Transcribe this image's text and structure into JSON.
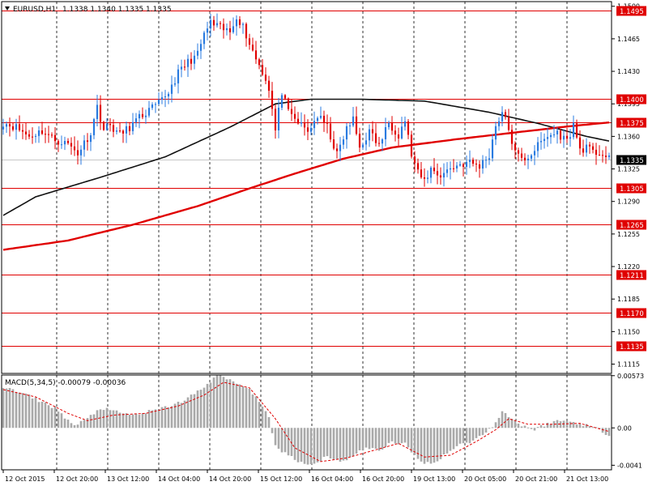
{
  "chart_data": {
    "type": "candlestick",
    "symbol_header": "EURUSD,H1",
    "ohlc_header": "1.1338 1.1340 1.1335 1.1335",
    "ylim": [
      1.1105,
      1.1505
    ],
    "price_ticks": [
      "1.1500",
      "1.1465",
      "1.1430",
      "1.1395",
      "1.1360",
      "1.1325",
      "1.1290",
      "1.1255",
      "1.1220",
      "1.1185",
      "1.1150",
      "1.1115"
    ],
    "levels": [
      {
        "value": 1.1495,
        "label": "1.1495"
      },
      {
        "value": 1.14,
        "label": "1.1400"
      },
      {
        "value": 1.1375,
        "label": "1.1375"
      },
      {
        "value": 1.1305,
        "label": "1.1305"
      },
      {
        "value": 1.1265,
        "label": "1.1265"
      },
      {
        "value": 1.1211,
        "label": "1.1211"
      },
      {
        "value": 1.117,
        "label": "1.1170"
      },
      {
        "value": 1.1135,
        "label": "1.1135"
      }
    ],
    "current_price": {
      "value": 1.1335,
      "label": "1.1335"
    },
    "time_labels": [
      "12 Oct 2015",
      "12 Oct 20:00",
      "13 Oct 12:00",
      "14 Oct 04:00",
      "14 Oct 20:00",
      "15 Oct 12:00",
      "16 Oct 04:00",
      "16 Oct 20:00",
      "19 Oct 13:00",
      "20 Oct 05:00",
      "20 Oct 21:00",
      "21 Oct 13:00"
    ],
    "close_anchors": [
      [
        0,
        1.1375
      ],
      [
        4,
        1.137
      ],
      [
        8,
        1.136
      ],
      [
        12,
        1.1366
      ],
      [
        16,
        1.1356
      ],
      [
        20,
        1.1352
      ],
      [
        23,
        1.1342
      ],
      [
        27,
        1.1364
      ],
      [
        29,
        1.1392
      ],
      [
        31,
        1.1368
      ],
      [
        33,
        1.1372
      ],
      [
        36,
        1.1362
      ],
      [
        39,
        1.137
      ],
      [
        42,
        1.138
      ],
      [
        45,
        1.1388
      ],
      [
        48,
        1.1395
      ],
      [
        51,
        1.1408
      ],
      [
        54,
        1.1428
      ],
      [
        57,
        1.144
      ],
      [
        60,
        1.1448
      ],
      [
        62,
        1.147
      ],
      [
        64,
        1.1482
      ],
      [
        66,
        1.1478
      ],
      [
        68,
        1.1475
      ],
      [
        70,
        1.1472
      ],
      [
        72,
        1.149
      ],
      [
        74,
        1.1478
      ],
      [
        76,
        1.146
      ],
      [
        78,
        1.1444
      ],
      [
        80,
        1.143
      ],
      [
        82,
        1.1412
      ],
      [
        84,
        1.1366
      ],
      [
        86,
        1.1408
      ],
      [
        88,
        1.1385
      ],
      [
        91,
        1.1375
      ],
      [
        94,
        1.1365
      ],
      [
        97,
        1.1382
      ],
      [
        100,
        1.137
      ],
      [
        103,
        1.134
      ],
      [
        106,
        1.1368
      ],
      [
        108,
        1.1378
      ],
      [
        110,
        1.1348
      ],
      [
        113,
        1.1365
      ],
      [
        116,
        1.135
      ],
      [
        119,
        1.1375
      ],
      [
        122,
        1.1362
      ],
      [
        124,
        1.1378
      ],
      [
        126,
        1.134
      ],
      [
        128,
        1.132
      ],
      [
        130,
        1.1312
      ],
      [
        132,
        1.1325
      ],
      [
        135,
        1.1318
      ],
      [
        138,
        1.1326
      ],
      [
        141,
        1.133
      ],
      [
        144,
        1.1332
      ],
      [
        147,
        1.1328
      ],
      [
        150,
        1.134
      ],
      [
        152,
        1.1372
      ],
      [
        154,
        1.1386
      ],
      [
        156,
        1.1368
      ],
      [
        158,
        1.1342
      ],
      [
        160,
        1.1335
      ],
      [
        162,
        1.1338
      ],
      [
        165,
        1.135
      ],
      [
        168,
        1.136
      ],
      [
        171,
        1.1364
      ],
      [
        174,
        1.1355
      ],
      [
        176,
        1.1372
      ],
      [
        178,
        1.1346
      ],
      [
        180,
        1.1348
      ],
      [
        182,
        1.1342
      ],
      [
        184,
        1.1343
      ],
      [
        186,
        1.1338
      ],
      [
        187,
        1.1335
      ]
    ],
    "ma_black_anchors": [
      [
        0,
        1.1275
      ],
      [
        10,
        1.1295
      ],
      [
        30,
        1.1316
      ],
      [
        50,
        1.1338
      ],
      [
        70,
        1.137
      ],
      [
        84,
        1.1395
      ],
      [
        95,
        1.14
      ],
      [
        110,
        1.14
      ],
      [
        130,
        1.1398
      ],
      [
        150,
        1.1386
      ],
      [
        165,
        1.1374
      ],
      [
        180,
        1.136
      ],
      [
        187,
        1.1355
      ]
    ],
    "ma_red_anchors": [
      [
        0,
        1.1238
      ],
      [
        20,
        1.1248
      ],
      [
        40,
        1.1265
      ],
      [
        60,
        1.1285
      ],
      [
        76,
        1.1304
      ],
      [
        90,
        1.132
      ],
      [
        105,
        1.1336
      ],
      [
        120,
        1.1348
      ],
      [
        140,
        1.1357
      ],
      [
        160,
        1.1365
      ],
      [
        175,
        1.1371
      ],
      [
        187,
        1.1375
      ]
    ],
    "macd": {
      "header": "MACD(5,34,5) -0.00079 -0.00036",
      "ylim": [
        -0.0046,
        0.0058
      ],
      "ticks": [
        {
          "value": 0.00573,
          "label": "0.00573"
        },
        {
          "value": 0.0,
          "label": "0.00"
        },
        {
          "value": -0.0041,
          "label": "-0.0041"
        }
      ],
      "hist_anchors": [
        [
          0,
          0.0045
        ],
        [
          8,
          0.0035
        ],
        [
          16,
          0.0022
        ],
        [
          22,
          0.0002
        ],
        [
          26,
          0.001
        ],
        [
          30,
          0.0022
        ],
        [
          34,
          0.0018
        ],
        [
          40,
          0.0014
        ],
        [
          48,
          0.002
        ],
        [
          56,
          0.003
        ],
        [
          62,
          0.0045
        ],
        [
          66,
          0.0058
        ],
        [
          70,
          0.0052
        ],
        [
          74,
          0.0046
        ],
        [
          78,
          0.0036
        ],
        [
          82,
          0.001
        ],
        [
          84,
          -0.002
        ],
        [
          88,
          -0.003
        ],
        [
          92,
          -0.0038
        ],
        [
          96,
          -0.004
        ],
        [
          100,
          -0.003
        ],
        [
          104,
          -0.0038
        ],
        [
          108,
          -0.003
        ],
        [
          112,
          -0.0022
        ],
        [
          116,
          -0.0025
        ],
        [
          120,
          -0.0015
        ],
        [
          124,
          -0.0018
        ],
        [
          128,
          -0.0035
        ],
        [
          132,
          -0.004
        ],
        [
          136,
          -0.003
        ],
        [
          140,
          -0.002
        ],
        [
          144,
          -0.0015
        ],
        [
          148,
          -0.0008
        ],
        [
          151,
          0.0002
        ],
        [
          154,
          0.0018
        ],
        [
          157,
          0.001
        ],
        [
          160,
          0.0003
        ],
        [
          164,
          -0.0002
        ],
        [
          168,
          0.0005
        ],
        [
          172,
          0.0008
        ],
        [
          176,
          0.0006
        ],
        [
          180,
          0.0003
        ],
        [
          184,
          -0.0002
        ],
        [
          187,
          -0.0008
        ]
      ],
      "signal_anchors": [
        [
          0,
          0.0042
        ],
        [
          10,
          0.0034
        ],
        [
          20,
          0.0016
        ],
        [
          26,
          0.0008
        ],
        [
          34,
          0.0014
        ],
        [
          44,
          0.0016
        ],
        [
          54,
          0.0024
        ],
        [
          62,
          0.0036
        ],
        [
          68,
          0.005
        ],
        [
          76,
          0.0044
        ],
        [
          84,
          0.001
        ],
        [
          90,
          -0.0022
        ],
        [
          98,
          -0.0037
        ],
        [
          106,
          -0.0033
        ],
        [
          114,
          -0.0025
        ],
        [
          122,
          -0.0017
        ],
        [
          130,
          -0.0032
        ],
        [
          138,
          -0.003
        ],
        [
          146,
          -0.0015
        ],
        [
          152,
          -0.0002
        ],
        [
          156,
          0.001
        ],
        [
          162,
          0.0004
        ],
        [
          170,
          0.0004
        ],
        [
          178,
          0.0005
        ],
        [
          187,
          -0.0004
        ]
      ]
    }
  }
}
